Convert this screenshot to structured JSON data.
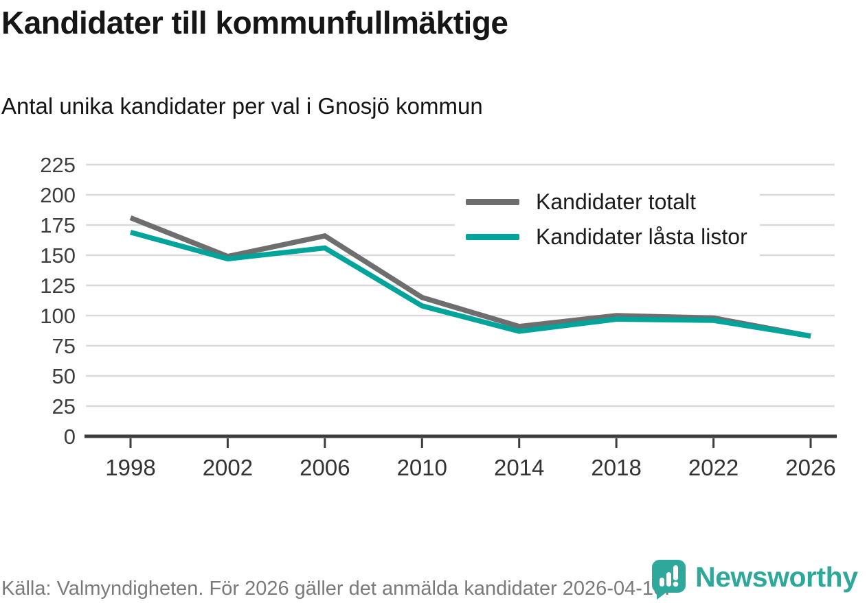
{
  "header": {
    "title": "Kandidater till kommunfullmäktige",
    "subtitle": "Antal unika kandidater per val i Gnosjö kommun"
  },
  "footer": {
    "source": "Källa: Valmyndigheten. För 2026 gäller det anmälda kandidater 2026-04-10."
  },
  "branding": {
    "name": "Newsworthy",
    "color": "#2da89a",
    "icon": "bar-chart-speech-bubble-icon"
  },
  "colors": {
    "series_total": "#6e6e6e",
    "series_locked": "#00a49b",
    "grid": "#d9d9d9",
    "axis": "#3c3c3c",
    "axis_text": "#3d3d3d"
  },
  "chart_data": {
    "type": "line",
    "title": "Kandidater till kommunfullmäktige",
    "subtitle": "Antal unika kandidater per val i Gnosjö kommun",
    "categories": [
      "1998",
      "2002",
      "2006",
      "2010",
      "2014",
      "2018",
      "2022",
      "2026"
    ],
    "series": [
      {
        "name": "Kandidater totalt",
        "color": "#6e6e6e",
        "values": [
          181,
          149,
          166,
          115,
          91,
          100,
          98,
          83
        ]
      },
      {
        "name": "Kandidater låsta listor",
        "color": "#00a49b",
        "values": [
          169,
          147,
          156,
          108,
          87,
          97,
          96,
          83
        ]
      }
    ],
    "xlabel": "",
    "ylabel": "",
    "ylim": [
      0,
      225
    ],
    "ytick_step": 25,
    "grid": "horizontal",
    "legend_position": "top-right-inset"
  }
}
